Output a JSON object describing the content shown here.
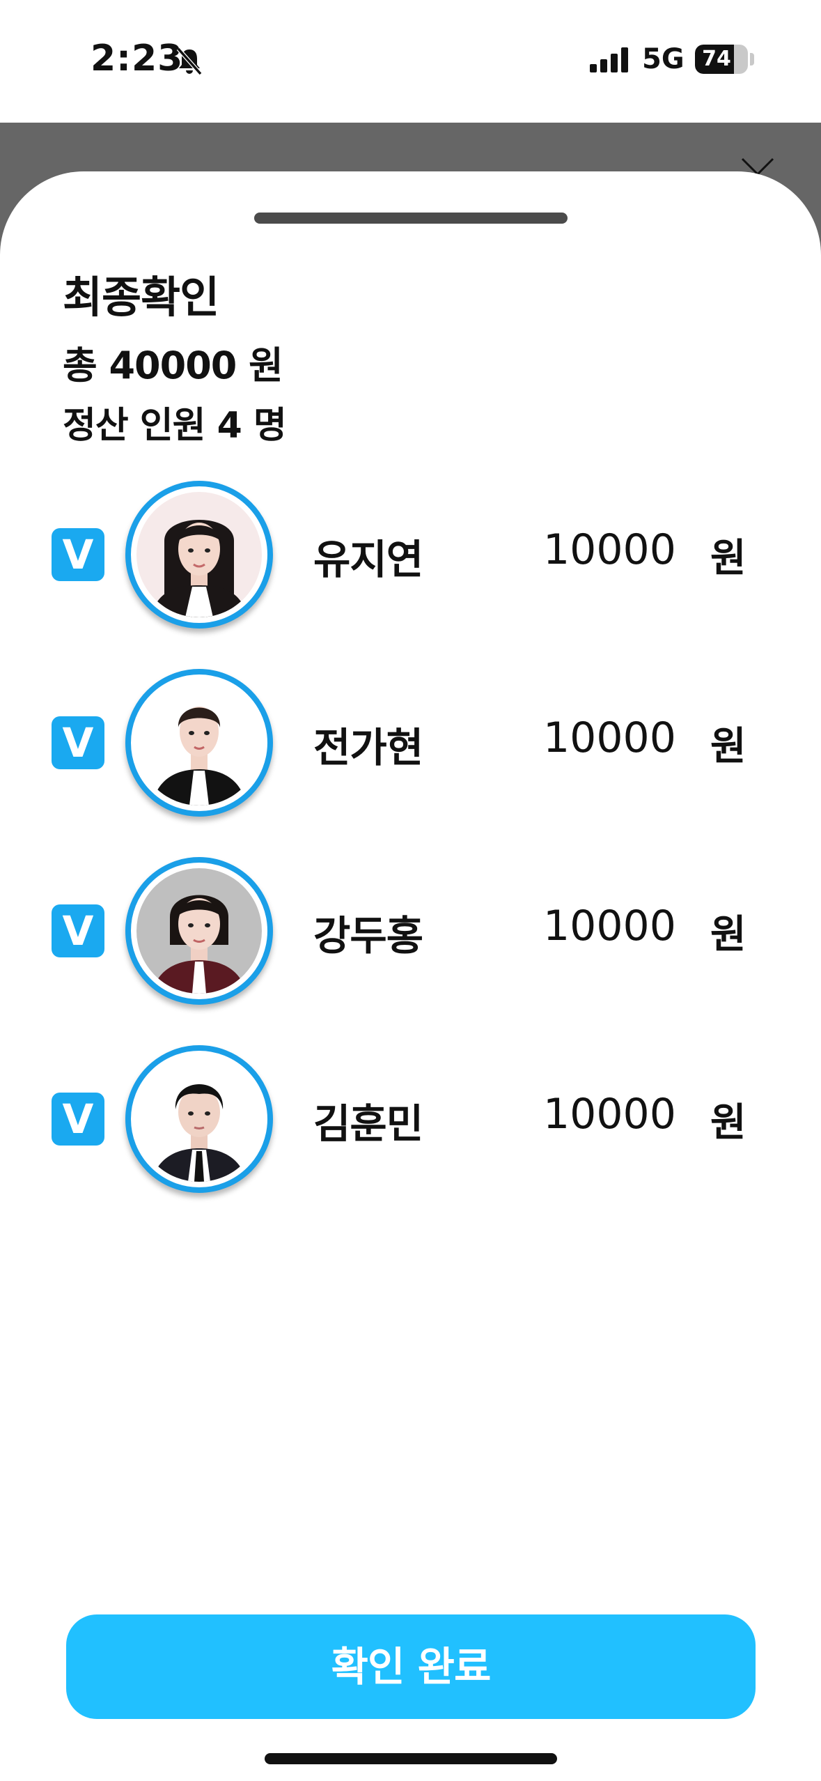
{
  "status_bar": {
    "time": "2:23",
    "network": "5G",
    "battery": "74",
    "battery_level": 0.74
  },
  "sheet": {
    "title": "최종확인",
    "total_line": "총 40000 원",
    "people_line": "정산 인원 4 명"
  },
  "members": [
    {
      "checked": "V",
      "name": "유지연",
      "amount": "10000",
      "unit": "원"
    },
    {
      "checked": "V",
      "name": "전가현",
      "amount": "10000",
      "unit": "원"
    },
    {
      "checked": "V",
      "name": "강두홍",
      "amount": "10000",
      "unit": "원"
    },
    {
      "checked": "V",
      "name": "김훈민",
      "amount": "10000",
      "unit": "원"
    }
  ],
  "confirm_button": {
    "label": "확인 완료"
  },
  "colors": {
    "accent": "#21c0ff",
    "checkbox": "#1aa9f0",
    "avatar_ring": "#1a9fe8",
    "backdrop": "#666666"
  }
}
